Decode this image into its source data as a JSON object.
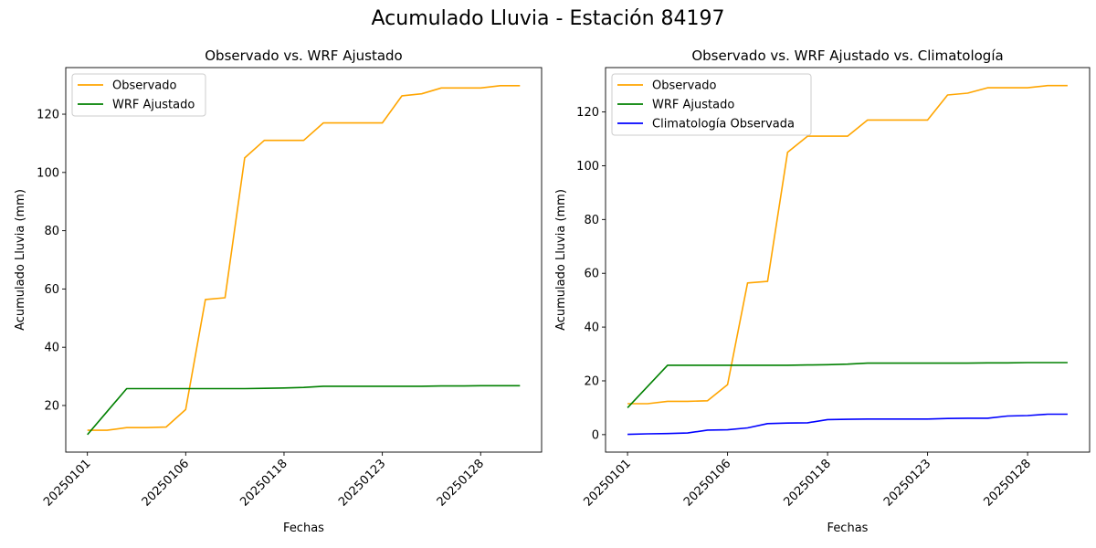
{
  "figure_title": "Acumulado Lluvia - Estación 84197",
  "chart_data": [
    {
      "type": "line",
      "title": "Observado vs. WRF Ajustado",
      "xlabel": "Fechas",
      "ylabel": "Acumulado Lluvia (mm)",
      "x_tick_labels": [
        "20250101",
        "20250106",
        "20250118",
        "20250123",
        "20250128"
      ],
      "y_ticks": [
        20,
        40,
        60,
        80,
        100,
        120
      ],
      "ylim": [
        4.0,
        136.0
      ],
      "grid": false,
      "legend_position": "upper-left",
      "series": [
        {
          "name": "Observado",
          "color": "#ffa500",
          "values": [
            11.5,
            11.5,
            12.4,
            12.4,
            12.6,
            18.6,
            56.4,
            57.0,
            105.0,
            111.0,
            111.0,
            111.0,
            117.0,
            117.0,
            117.0,
            117.0,
            126.3,
            127.0,
            129.0,
            129.0,
            129.0,
            129.8,
            129.8
          ]
        },
        {
          "name": "WRF Ajustado",
          "color": "#008000",
          "values": [
            10.0,
            17.9,
            25.8,
            25.8,
            25.8,
            25.8,
            25.8,
            25.8,
            25.8,
            25.9,
            26.0,
            26.2,
            26.6,
            26.6,
            26.6,
            26.6,
            26.6,
            26.6,
            26.7,
            26.7,
            26.8,
            26.8,
            26.8
          ]
        }
      ]
    },
    {
      "type": "line",
      "title": "Observado vs. WRF Ajustado vs. Climatología",
      "xlabel": "Fechas",
      "ylabel": "Acumulado Lluvia (mm)",
      "x_tick_labels": [
        "20250101",
        "20250106",
        "20250118",
        "20250123",
        "20250128"
      ],
      "y_ticks": [
        0,
        20,
        40,
        60,
        80,
        100,
        120
      ],
      "ylim": [
        -6.5,
        136.5
      ],
      "grid": false,
      "legend_position": "upper-left",
      "series": [
        {
          "name": "Observado",
          "color": "#ffa500",
          "values": [
            11.5,
            11.5,
            12.4,
            12.4,
            12.6,
            18.6,
            56.4,
            57.0,
            105.0,
            111.0,
            111.0,
            111.0,
            117.0,
            117.0,
            117.0,
            117.0,
            126.3,
            127.0,
            129.0,
            129.0,
            129.0,
            129.8,
            129.8
          ]
        },
        {
          "name": "WRF Ajustado",
          "color": "#008000",
          "values": [
            10.0,
            17.9,
            25.8,
            25.8,
            25.8,
            25.8,
            25.8,
            25.8,
            25.8,
            25.9,
            26.0,
            26.2,
            26.6,
            26.6,
            26.6,
            26.6,
            26.6,
            26.6,
            26.7,
            26.7,
            26.8,
            26.8,
            26.8
          ]
        },
        {
          "name": "Climatología Observada",
          "color": "#0000ff",
          "values": [
            0.1,
            0.3,
            0.4,
            0.6,
            1.7,
            1.8,
            2.5,
            4.1,
            4.3,
            4.4,
            5.6,
            5.7,
            5.8,
            5.8,
            5.8,
            5.8,
            6.0,
            6.1,
            6.1,
            6.9,
            7.1,
            7.6,
            7.6
          ]
        }
      ]
    }
  ]
}
